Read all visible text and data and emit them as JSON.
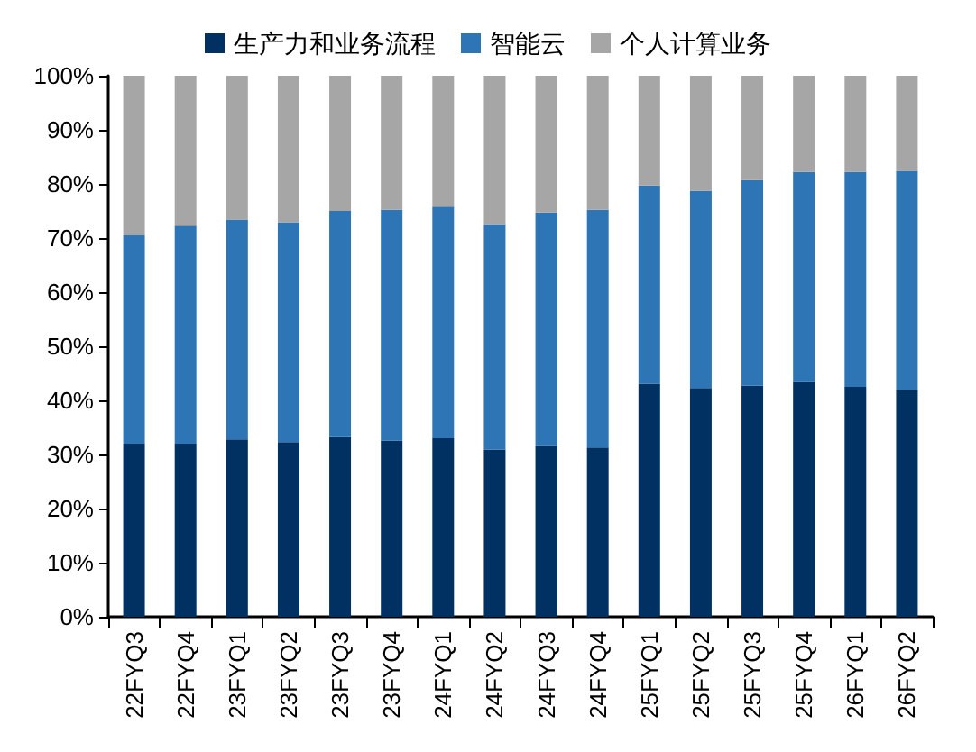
{
  "chart_data": {
    "type": "bar",
    "stacked": true,
    "legend": "top",
    "grid": false,
    "categories": [
      "22FYQ3",
      "22FYQ4",
      "23FYQ1",
      "23FYQ2",
      "23FYQ3",
      "23FYQ4",
      "24FYQ1",
      "24FYQ2",
      "24FYQ3",
      "24FYQ4",
      "25FYQ1",
      "25FYQ2",
      "25FYQ3",
      "25FYQ4",
      "26FYQ1",
      "26FYQ2"
    ],
    "series": [
      {
        "name": "生产力和业务流程",
        "color": "#003163",
        "values": [
          32.0,
          32.0,
          32.8,
          32.3,
          33.2,
          32.6,
          33.0,
          30.9,
          31.6,
          31.3,
          43.1,
          42.3,
          42.7,
          43.4,
          42.5,
          41.9
        ]
      },
      {
        "name": "智能云",
        "color": "#2e75b6",
        "values": [
          38.5,
          40.3,
          40.6,
          40.6,
          41.8,
          42.6,
          42.8,
          41.7,
          43.1,
          43.9,
          36.6,
          36.4,
          38.0,
          38.8,
          39.7,
          40.5
        ]
      },
      {
        "name": "个人计算业务",
        "color": "#a6a6a6",
        "values": [
          29.5,
          27.7,
          26.6,
          27.1,
          25.0,
          24.8,
          24.2,
          27.4,
          25.3,
          24.8,
          20.3,
          21.3,
          19.3,
          17.8,
          17.8,
          17.6
        ]
      }
    ],
    "ylim": [
      0,
      100
    ],
    "yticks": [
      {
        "value": 0,
        "label": "0%"
      },
      {
        "value": 10,
        "label": "10%"
      },
      {
        "value": 20,
        "label": "20%"
      },
      {
        "value": 30,
        "label": "30%"
      },
      {
        "value": 40,
        "label": "40%"
      },
      {
        "value": 50,
        "label": "50%"
      },
      {
        "value": 60,
        "label": "60%"
      },
      {
        "value": 70,
        "label": "70%"
      },
      {
        "value": 80,
        "label": "80%"
      },
      {
        "value": 90,
        "label": "90%"
      },
      {
        "value": 100,
        "label": "100%"
      }
    ]
  }
}
